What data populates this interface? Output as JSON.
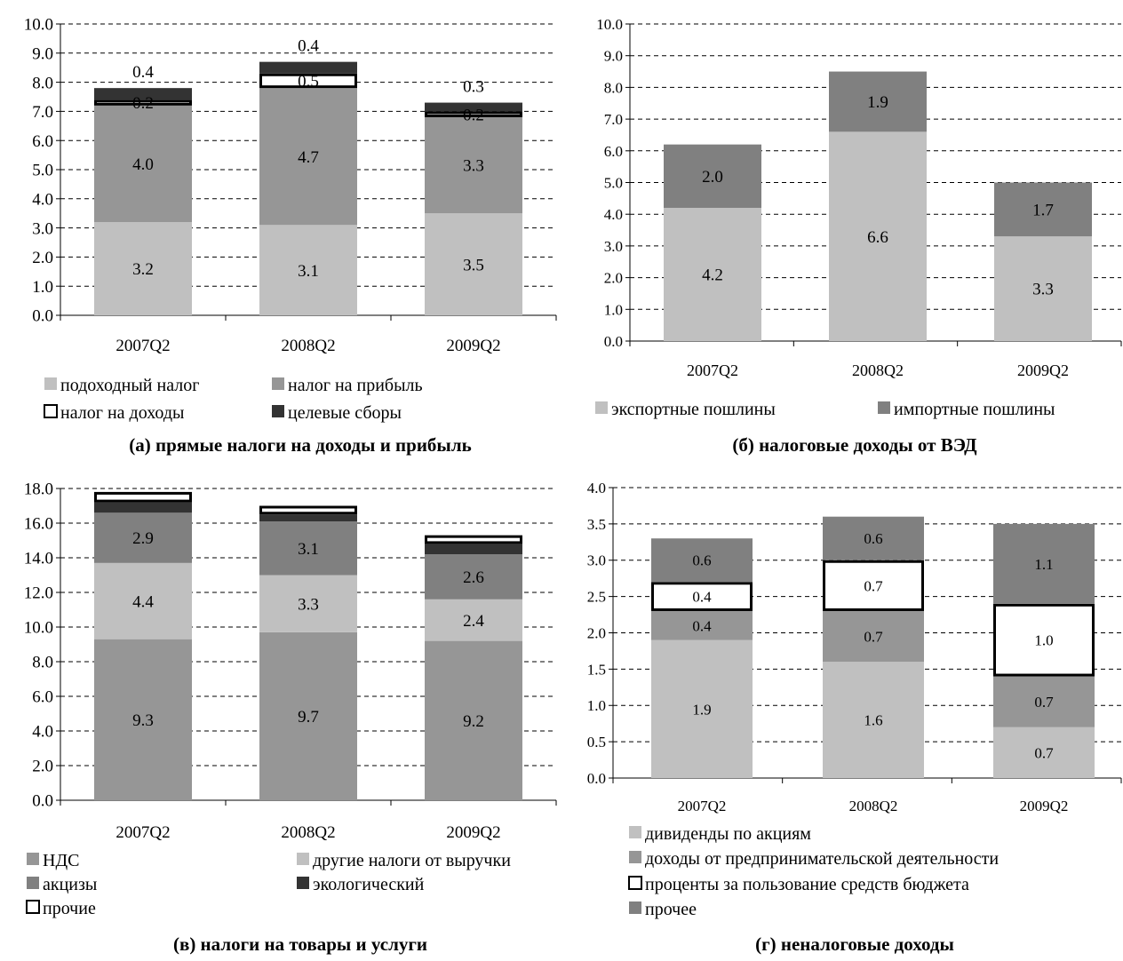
{
  "chart_data": [
    {
      "id": "a",
      "type": "bar",
      "stacked": true,
      "title": "(а) прямые налоги на доходы и прибыль",
      "categories": [
        "2007Q2",
        "2008Q2",
        "2009Q2"
      ],
      "ylim": [
        0,
        10
      ],
      "yticks": [
        "0.0",
        "1.0",
        "2.0",
        "3.0",
        "4.0",
        "5.0",
        "6.0",
        "7.0",
        "8.0",
        "9.0",
        "10.0"
      ],
      "grid": true,
      "legend_position": "bottom",
      "series": [
        {
          "name": "подоходный налог",
          "values": [
            3.2,
            3.1,
            3.5
          ],
          "labels": [
            "3.2",
            "3.1",
            "3.5"
          ],
          "color": "#c0c0c0"
        },
        {
          "name": "налог на прибыль",
          "values": [
            4.0,
            4.7,
            3.3
          ],
          "labels": [
            "4.0",
            "4.7",
            "3.3"
          ],
          "color": "#969696"
        },
        {
          "name": "налог на доходы",
          "values": [
            0.2,
            0.5,
            0.2
          ],
          "labels": [
            "0.2",
            "0.5",
            "0.2"
          ],
          "color": "#ffffff",
          "outlined": true
        },
        {
          "name": "целевые сборы",
          "values": [
            0.4,
            0.4,
            0.3
          ],
          "labels": [
            "0.4",
            "0.4",
            "0.3"
          ],
          "color": "#333333"
        }
      ]
    },
    {
      "id": "b",
      "type": "bar",
      "stacked": true,
      "title": "(б) налоговые доходы от ВЭД",
      "categories": [
        "2007Q2",
        "2008Q2",
        "2009Q2"
      ],
      "ylim": [
        0,
        10
      ],
      "yticks": [
        "0.0",
        "1.0",
        "2.0",
        "3.0",
        "4.0",
        "5.0",
        "6.0",
        "7.0",
        "8.0",
        "9.0",
        "10.0"
      ],
      "grid": true,
      "legend_position": "bottom",
      "series": [
        {
          "name": "экспортные пошлины",
          "values": [
            4.2,
            6.6,
            3.3
          ],
          "labels": [
            "4.2",
            "6.6",
            "3.3"
          ],
          "color": "#c0c0c0"
        },
        {
          "name": "импортные пошлины",
          "values": [
            2.0,
            1.9,
            1.7
          ],
          "labels": [
            "2.0",
            "1.9",
            "1.7"
          ],
          "color": "#808080"
        }
      ]
    },
    {
      "id": "c",
      "type": "bar",
      "stacked": true,
      "title": "(в) налоги на товары и услуги",
      "categories": [
        "2007Q2",
        "2008Q2",
        "2009Q2"
      ],
      "ylim": [
        0,
        18
      ],
      "yticks": [
        "0.0",
        "2.0",
        "4.0",
        "6.0",
        "8.0",
        "10.0",
        "12.0",
        "14.0",
        "16.0",
        "18.0"
      ],
      "grid": true,
      "legend_position": "bottom",
      "series": [
        {
          "name": "НДС",
          "values": [
            9.3,
            9.7,
            9.2
          ],
          "labels": [
            "9.3",
            "9.7",
            "9.2"
          ],
          "color": "#969696"
        },
        {
          "name": "другие налоги от выручки",
          "values": [
            4.4,
            3.3,
            2.4
          ],
          "labels": [
            "4.4",
            "3.3",
            "2.4"
          ],
          "color": "#c0c0c0"
        },
        {
          "name": "акцизы",
          "values": [
            2.9,
            3.1,
            2.6
          ],
          "labels": [
            "2.9",
            "3.1",
            "2.6"
          ],
          "color": "#808080"
        },
        {
          "name": "экологический",
          "values": [
            0.6,
            0.4,
            0.6
          ],
          "labels": [
            "",
            "",
            ""
          ],
          "color": "#333333"
        },
        {
          "name": "прочие",
          "values": [
            0.6,
            0.5,
            0.5
          ],
          "labels": [
            "",
            "",
            ""
          ],
          "color": "#ffffff",
          "outlined": true
        }
      ]
    },
    {
      "id": "d",
      "type": "bar",
      "stacked": true,
      "title": "(г) неналоговые доходы",
      "categories": [
        "2007Q2",
        "2008Q2",
        "2009Q2"
      ],
      "ylim": [
        0,
        4
      ],
      "yticks": [
        "0.0",
        "0.5",
        "1.0",
        "1.5",
        "2.0",
        "2.5",
        "3.0",
        "3.5",
        "4.0"
      ],
      "grid": true,
      "legend_position": "bottom",
      "series": [
        {
          "name": "дивиденды по акциям",
          "values": [
            1.9,
            1.6,
            0.7
          ],
          "labels": [
            "1.9",
            "1.6",
            "0.7"
          ],
          "color": "#c0c0c0"
        },
        {
          "name": "доходы от предпринимательской деятельности",
          "values": [
            0.4,
            0.7,
            0.7
          ],
          "labels": [
            "0.4",
            "0.7",
            "0.7"
          ],
          "color": "#969696"
        },
        {
          "name": "проценты за пользование средств бюджета",
          "values": [
            0.4,
            0.7,
            1.0
          ],
          "labels": [
            "0.4",
            "0.7",
            "1.0"
          ],
          "color": "#ffffff",
          "outlined": true
        },
        {
          "name": "прочее",
          "values": [
            0.6,
            0.6,
            1.1
          ],
          "labels": [
            "0.6",
            "0.6",
            "1.1"
          ],
          "color": "#808080"
        }
      ]
    }
  ]
}
